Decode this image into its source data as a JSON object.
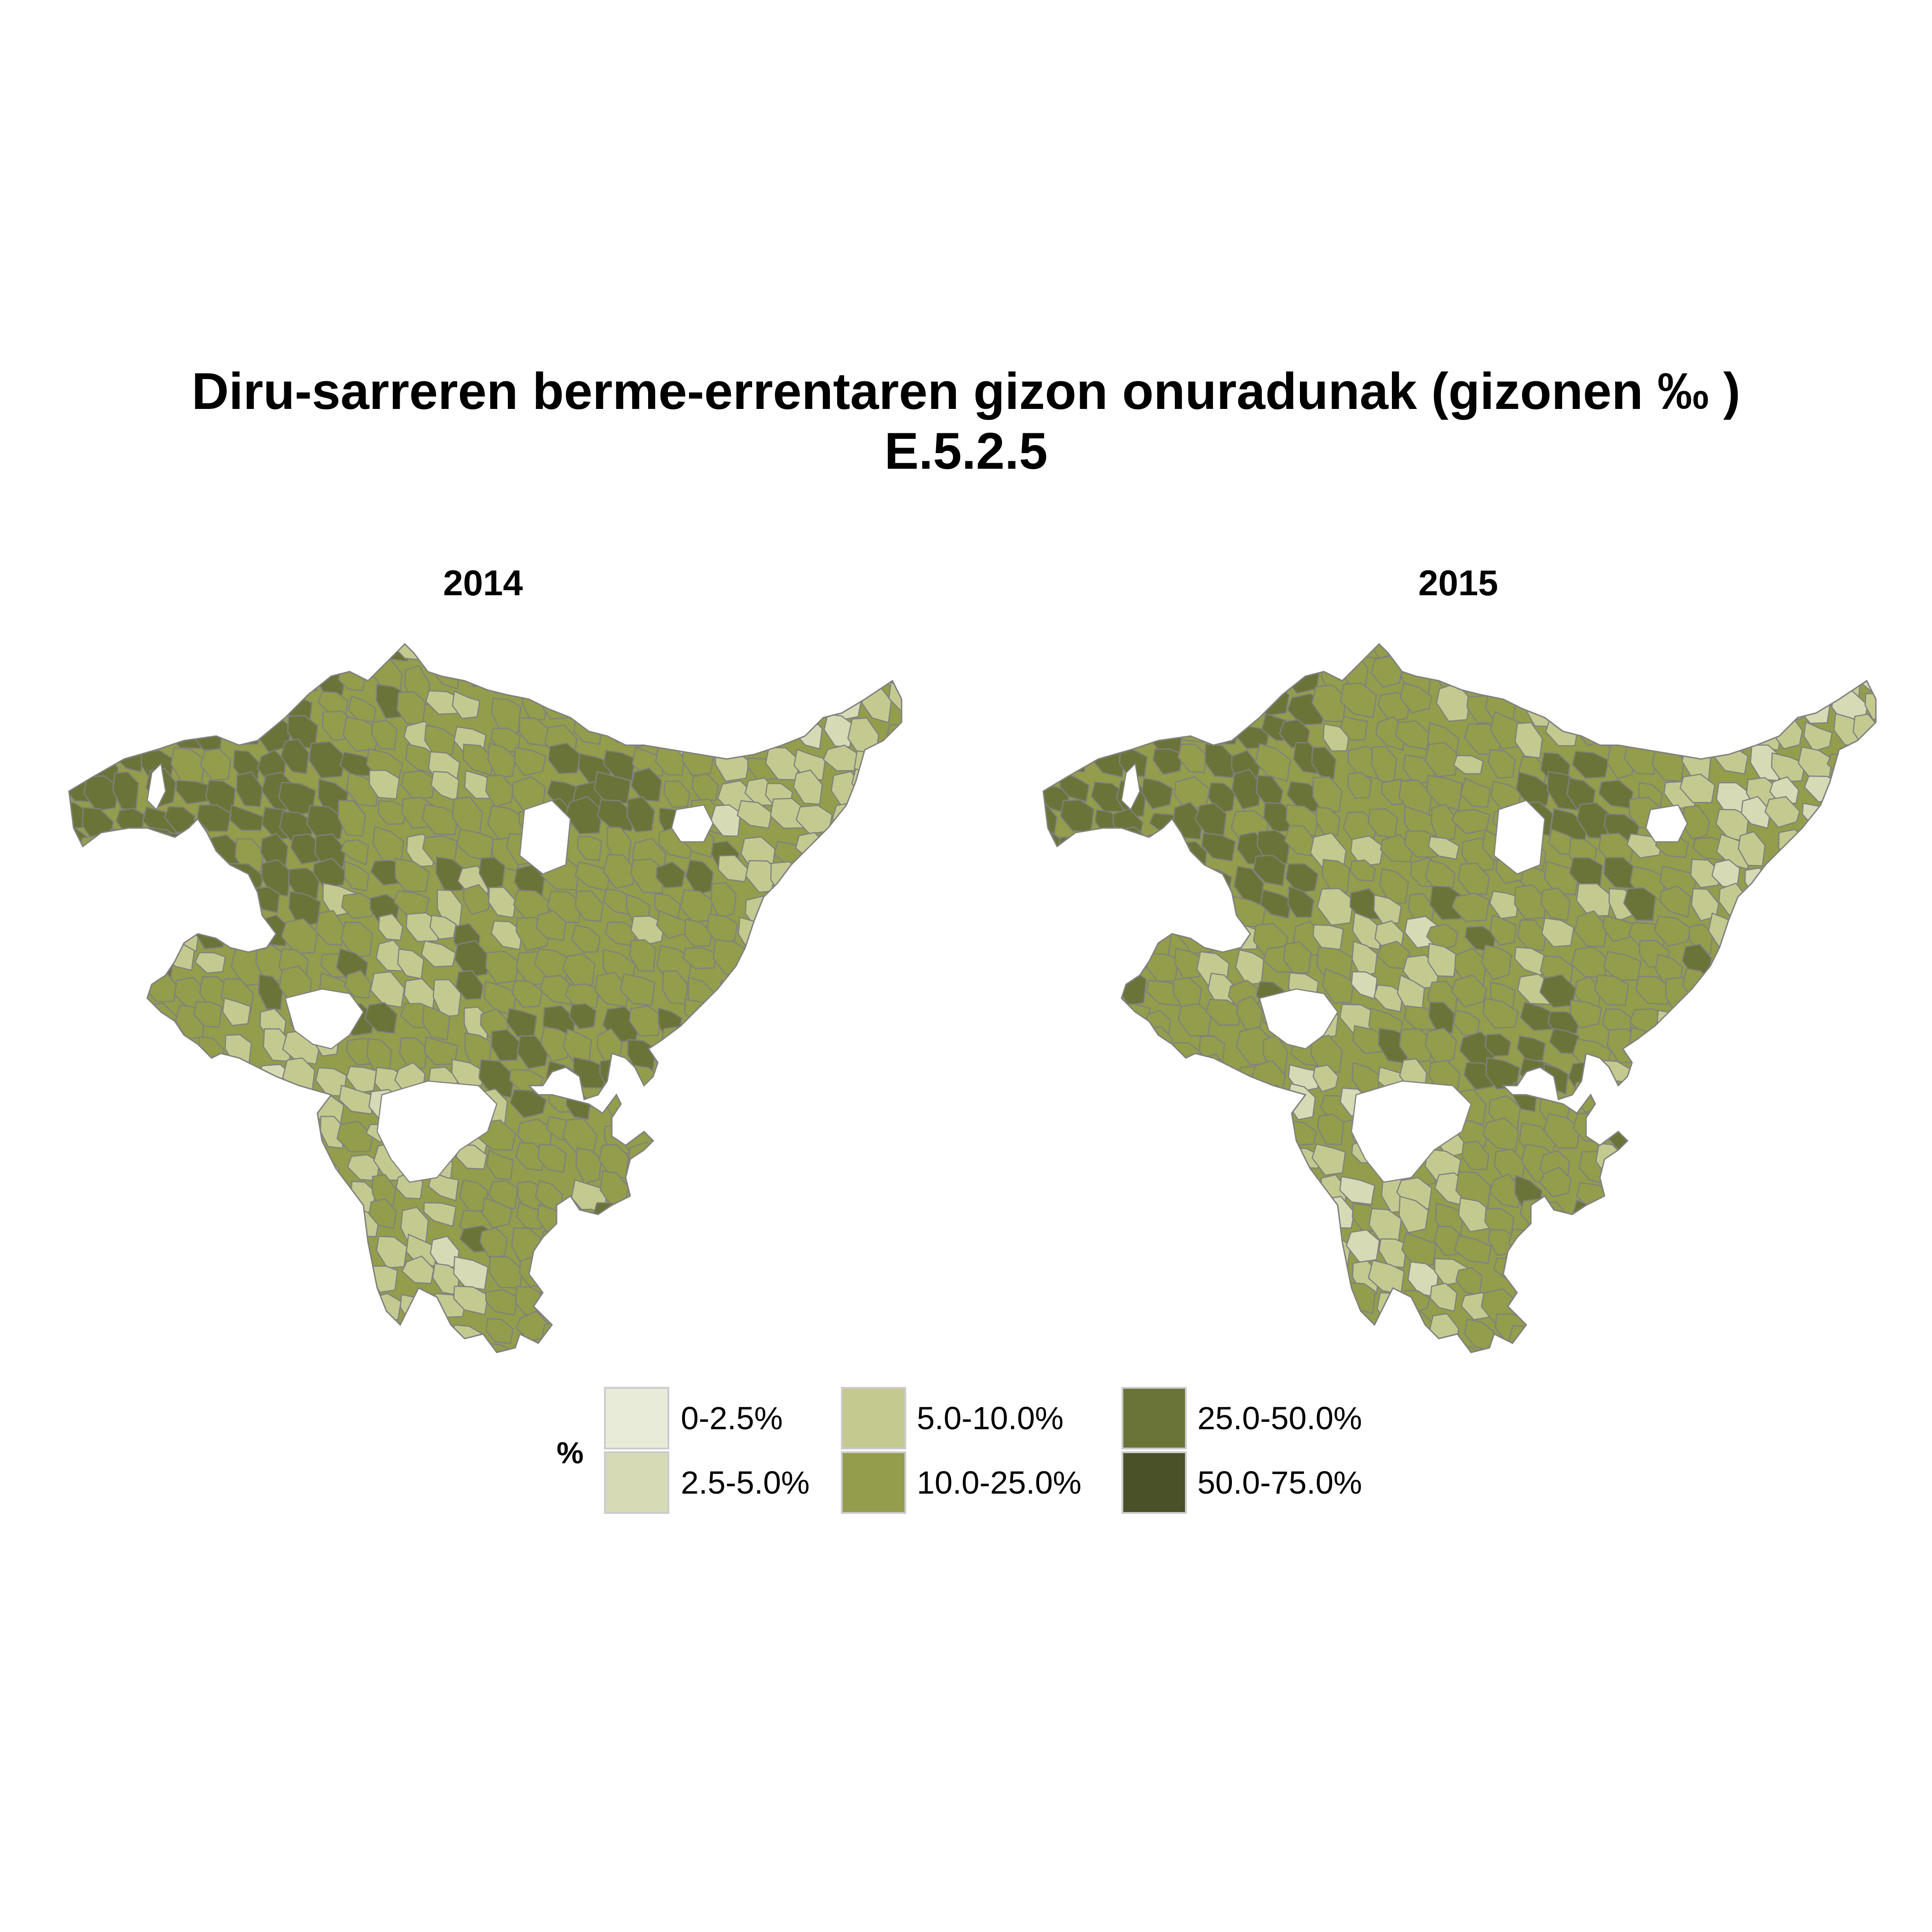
{
  "title_line1": "Diru-sarreren berme-errentaren gizon onuradunak (gizonen ‰ )",
  "title_line2": "E.5.2.5",
  "panels": [
    "2014",
    "2015"
  ],
  "colors": {
    "c0": "#e9ebd9",
    "c1": "#d6dbb6",
    "c2": "#c4ca8f",
    "c3": "#939d4b",
    "c4": "#6b7438",
    "c5": "#4a5028",
    "border": "#808080",
    "nodata": "#ffffff"
  },
  "legend": {
    "title": "%",
    "items": [
      {
        "label": "0-2.5%",
        "color": "#e9ebd9"
      },
      {
        "label": "2.5-5.0%",
        "color": "#d6dbb6"
      },
      {
        "label": "5.0-10.0%",
        "color": "#c4ca8f"
      },
      {
        "label": "10.0-25.0%",
        "color": "#939d4b"
      },
      {
        "label": "25.0-50.0%",
        "color": "#6b7438"
      },
      {
        "label": "50.0-75.0%",
        "color": "#4a5028"
      }
    ]
  }
}
